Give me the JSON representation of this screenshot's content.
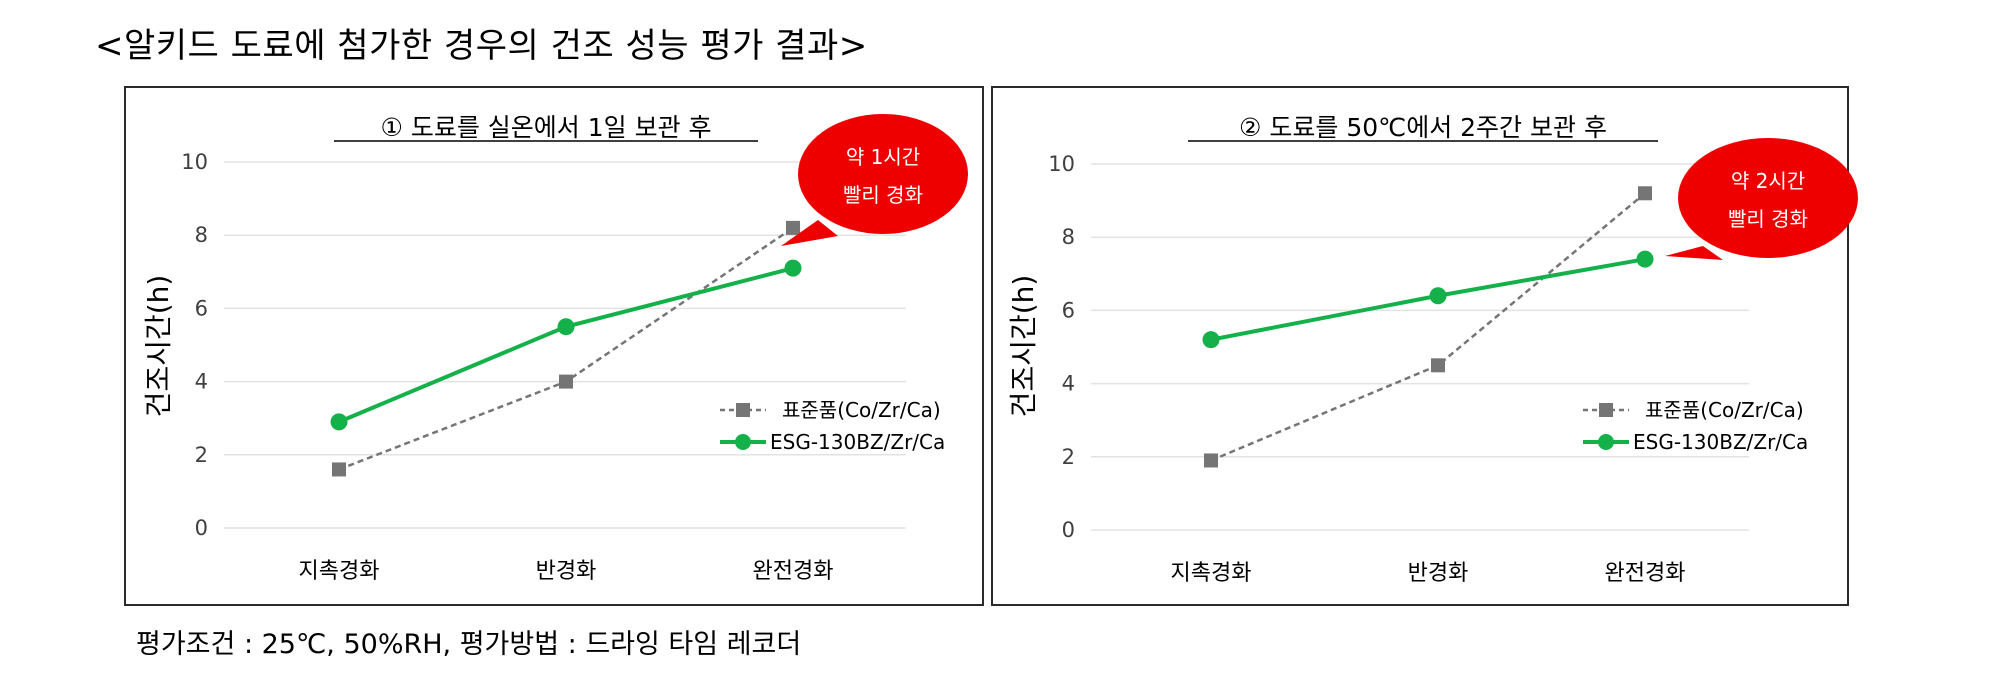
{
  "page": {
    "title": "<알키드 도료에 첨가한 경우의 건조 성능 평가 결과>",
    "footnote": "평가조건 : 25℃, 50%RH, 평가방법 : 드라잉 타임 레코더"
  },
  "colors": {
    "standard": "#757575",
    "esg": "#14b14b",
    "callout": "#ee0000"
  },
  "chart_data": [
    {
      "type": "line",
      "title": "① 도료를 실온에서 1일 보관 후",
      "xlabel": "",
      "ylabel": "건조시간(h)",
      "categories": [
        "지촉경화",
        "반경화",
        "완전경화"
      ],
      "ylim": [
        0,
        10
      ],
      "yticks": [
        0,
        2,
        4,
        6,
        8,
        10
      ],
      "grid": true,
      "legend_position": "right",
      "series": [
        {
          "name": "표준품(Co/Zr/Ca)",
          "values": [
            1.6,
            4.0,
            8.2
          ],
          "style": "dashed-square"
        },
        {
          "name": "ESG-130BZ/Zr/Ca",
          "values": [
            2.9,
            5.5,
            7.1
          ],
          "style": "solid-circle"
        }
      ],
      "callout": {
        "line1": "약 1시간",
        "line2": "빨리 경화"
      }
    },
    {
      "type": "line",
      "title": "② 도료를 50℃에서 2주간 보관 후",
      "xlabel": "",
      "ylabel": "건조시간(h)",
      "categories": [
        "지촉경화",
        "반경화",
        "완전경화"
      ],
      "ylim": [
        0,
        10
      ],
      "yticks": [
        0,
        2,
        4,
        6,
        8,
        10
      ],
      "grid": true,
      "legend_position": "right",
      "series": [
        {
          "name": "표준품(Co/Zr/Ca)",
          "values": [
            1.9,
            4.5,
            9.2
          ],
          "style": "dashed-square"
        },
        {
          "name": "ESG-130BZ/Zr/Ca",
          "values": [
            5.2,
            6.4,
            7.4
          ],
          "style": "solid-circle"
        }
      ],
      "callout": {
        "line1": "약 2시간",
        "line2": "빨리 경화"
      }
    }
  ]
}
